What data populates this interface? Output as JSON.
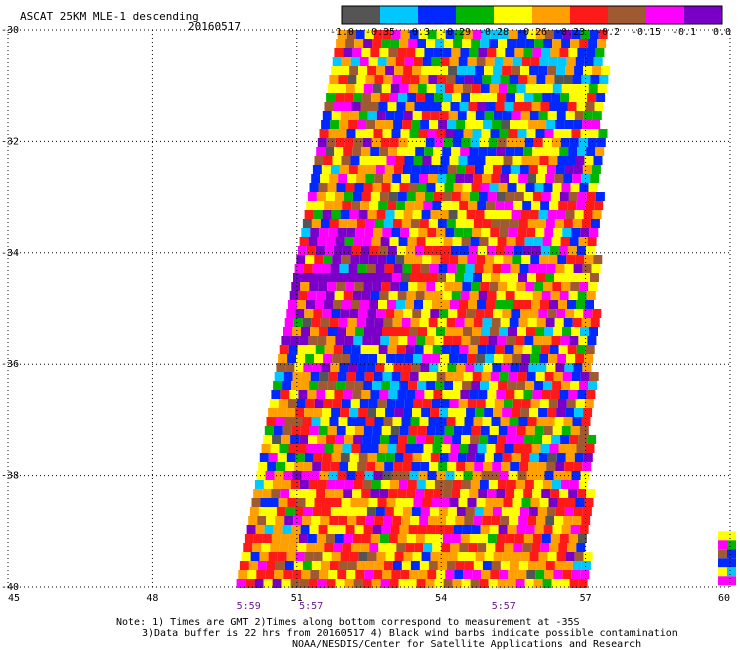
{
  "title": "ASCAT 25KM MLE-1 descending",
  "date": "20160517",
  "notes": [
    "Note: 1) Times are GMT 2)Times along bottom correspond to measurement at -35S",
    "3)Data buffer is 22 hrs from 20160517 4) Black wind barbs indicate possible contamination",
    "NOAA/NESDIS/Center for Satellite Applications and Research"
  ],
  "colors": {
    "palette": [
      "#555555",
      "#00c8ff",
      "#0028ff",
      "#00b400",
      "#ffff00",
      "#ffa000",
      "#ff1a1a",
      "#a05a32",
      "#ff00ff",
      "#7a00c8"
    ],
    "grid": "#000000"
  },
  "chart_data": {
    "type": "heatmap",
    "colorbar": {
      "tick_labels": [
        "-1.0",
        "-0.35",
        "-0.3",
        "-0.29",
        "-0.28",
        "-0.26",
        "-0.23",
        "-0.2",
        "-0.15",
        "-0.1",
        "0.0"
      ],
      "tick_values": [
        -1.0,
        -0.35,
        -0.3,
        -0.29,
        -0.28,
        -0.26,
        -0.23,
        -0.2,
        -0.15,
        -0.1,
        0.0
      ]
    },
    "x_ticks": [
      "45",
      "48",
      "51",
      "54",
      "57",
      "60"
    ],
    "x_tick_values": [
      45,
      48,
      51,
      54,
      57,
      60
    ],
    "y_ticks": [
      "-30",
      "-32",
      "-34",
      "-36",
      "-38",
      "-40"
    ],
    "y_tick_values": [
      -30,
      -32,
      -34,
      -36,
      -38,
      -40
    ],
    "xlim": [
      45,
      60
    ],
    "ylim": [
      -40,
      -30
    ],
    "times": [
      {
        "label": "5:59",
        "lon": 50.0
      },
      {
        "label": "5:57",
        "lon": 51.3
      },
      {
        "label": "5:57",
        "lon": 55.3
      }
    ],
    "swaths": [
      {
        "lat_range": [
          -40,
          -30
        ],
        "west_edge_lon": [
          49.75,
          51.85
        ],
        "east_edge_lon": [
          56.95,
          57.35
        ]
      },
      {
        "lat_range": [
          -40,
          -39.0
        ],
        "west_edge_lon": [
          59.75,
          59.75
        ],
        "east_edge_lon": [
          60,
          60
        ]
      }
    ],
    "grid": true
  }
}
